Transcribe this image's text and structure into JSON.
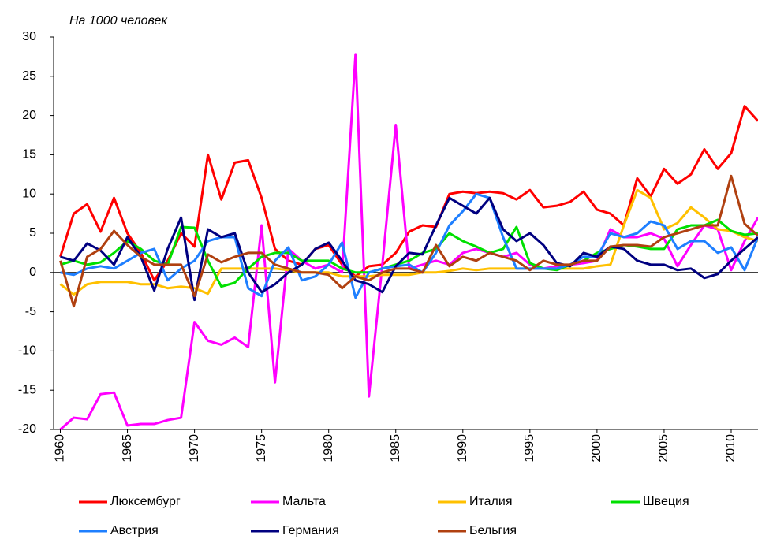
{
  "chart_data": {
    "type": "line",
    "title": "На 1000 человек",
    "x": [
      1960,
      1961,
      1962,
      1963,
      1964,
      1965,
      1966,
      1967,
      1968,
      1969,
      1970,
      1971,
      1972,
      1973,
      1974,
      1975,
      1976,
      1977,
      1978,
      1979,
      1980,
      1981,
      1982,
      1983,
      1984,
      1985,
      1986,
      1987,
      1988,
      1989,
      1990,
      1991,
      1992,
      1993,
      1994,
      1995,
      1996,
      1997,
      1998,
      1999,
      2000,
      2001,
      2002,
      2003,
      2004,
      2005,
      2006,
      2007,
      2008,
      2009,
      2010,
      2011,
      2012
    ],
    "xlim": [
      1959.5,
      2012
    ],
    "xticks": [
      1960,
      1965,
      1970,
      1975,
      1980,
      1985,
      1990,
      1995,
      2000,
      2005,
      2010
    ],
    "ylim": [
      -20,
      30
    ],
    "yticks": [
      -20,
      -15,
      -10,
      -5,
      0,
      5,
      10,
      15,
      20,
      25,
      30
    ],
    "series": [
      {
        "name": "Люксембург",
        "color": "#ff0000",
        "values": [
          2,
          7.5,
          8.7,
          5.2,
          9.5,
          5,
          2.5,
          -1,
          1.5,
          5,
          3.3,
          15,
          9.3,
          14,
          14.3,
          9.5,
          3,
          1.5,
          1,
          3,
          3.5,
          1,
          -0.5,
          0.8,
          1,
          2.5,
          5.2,
          6,
          5.8,
          10,
          10.3,
          10.1,
          10.3,
          10.1,
          9.3,
          10.5,
          8.3,
          8.5,
          9,
          10.3,
          8,
          7.5,
          6,
          12,
          9.7,
          13.2,
          11.3,
          12.5,
          15.7,
          13.2,
          15.2,
          21.2,
          19.3
        ]
      },
      {
        "name": "Мальта",
        "color": "#ff00ff",
        "values": [
          -20,
          -18.5,
          -18.7,
          -15.5,
          -15.3,
          -19.5,
          -19.3,
          -19.3,
          -18.8,
          -18.5,
          -6.3,
          -8.7,
          -9.2,
          -8.3,
          -9.5,
          6,
          -14,
          3,
          1.5,
          0.5,
          1,
          0,
          27.8,
          -15.8,
          1,
          18.8,
          0.5,
          1,
          1.5,
          1,
          2.5,
          3,
          2.5,
          2,
          2.5,
          1,
          0.5,
          0.8,
          1,
          1.2,
          1.5,
          5.5,
          4.5,
          4.5,
          5,
          4.3,
          0.8,
          3.5,
          6,
          5.5,
          0.3,
          4,
          7
        ]
      },
      {
        "name": "Италия",
        "color": "#ffc000",
        "values": [
          -1.5,
          -2.8,
          -1.5,
          -1.2,
          -1.2,
          -1.2,
          -1.5,
          -1.5,
          -2,
          -1.8,
          -2,
          -2.7,
          0.5,
          0.5,
          0.5,
          0.5,
          0.5,
          0.3,
          0,
          0,
          0,
          -0.5,
          -0.5,
          -0.5,
          -0.3,
          -0.3,
          -0.3,
          0,
          0,
          0.2,
          0.5,
          0.3,
          0.5,
          0.5,
          0.5,
          0.5,
          0.5,
          0.5,
          0.5,
          0.5,
          0.8,
          1,
          6,
          10.5,
          9.5,
          5.5,
          6.3,
          8.3,
          7,
          5.5,
          5.3,
          4.5,
          4
        ]
      },
      {
        "name": "Швеция",
        "color": "#00e000",
        "values": [
          1,
          1.5,
          1,
          1.3,
          2.5,
          4,
          3,
          1.5,
          1,
          5.8,
          5.7,
          1.5,
          -1.8,
          -1.3,
          0.5,
          2,
          2.5,
          2.5,
          1.5,
          1.5,
          1.5,
          0.5,
          0,
          0,
          0.5,
          1,
          1.5,
          2.5,
          3,
          5,
          4,
          3.3,
          2.5,
          3,
          5.8,
          1.2,
          0.5,
          0.3,
          1,
          1.5,
          2.5,
          3,
          3.5,
          3.3,
          3,
          3,
          5.5,
          6,
          6,
          6.7,
          5.3,
          4.8,
          5
        ]
      },
      {
        "name": "Австрия",
        "color": "#1e7fff",
        "values": [
          0,
          -0.3,
          0.5,
          0.8,
          0.5,
          1.5,
          2.5,
          3,
          -1,
          0.5,
          1.5,
          4,
          4.5,
          4.5,
          -2,
          -3,
          1.5,
          3.2,
          -1,
          -0.5,
          1,
          3.8,
          -3.2,
          0,
          0.5,
          0.8,
          1,
          0,
          2.5,
          6,
          7.8,
          10,
          9.5,
          4.5,
          0.5,
          0.5,
          0.5,
          0.5,
          1,
          2,
          2,
          5,
          4.5,
          5,
          6.5,
          6,
          3,
          4,
          4,
          2.5,
          3.2,
          0.3,
          4.5
        ]
      },
      {
        "name": "Германия",
        "color": "#000080",
        "values": [
          2,
          1.5,
          3.7,
          2.8,
          1,
          4.5,
          2,
          -2.3,
          3,
          7,
          -3.5,
          5.5,
          4.5,
          5,
          0,
          -2.5,
          -1.5,
          0,
          1,
          3,
          3.8,
          1.5,
          -1,
          -1.5,
          -2.5,
          0.8,
          2.5,
          2.3,
          6,
          9.5,
          8.5,
          7.5,
          9.5,
          5.5,
          4,
          5,
          3.5,
          1.2,
          0.8,
          2.5,
          2,
          3.3,
          3,
          1.5,
          1,
          1,
          0.3,
          0.5,
          -0.7,
          -0.2,
          1.5,
          3,
          4.5
        ]
      },
      {
        "name": "Бельгия",
        "color": "#b04010",
        "values": [
          1.5,
          -4.3,
          2,
          3,
          5.3,
          3.5,
          2,
          1,
          1,
          1,
          -3,
          2.3,
          1.3,
          2,
          2.5,
          2.5,
          1,
          0.5,
          0,
          0,
          -0.3,
          -2,
          -0.5,
          -1,
          0,
          0.5,
          0.5,
          0,
          3.5,
          0.8,
          2,
          1.5,
          2.5,
          2,
          1.5,
          0.3,
          1.5,
          1,
          1,
          1.5,
          1.5,
          3.3,
          3.5,
          3.5,
          3.3,
          4.5,
          5,
          5.5,
          6,
          6,
          12.3,
          6.2,
          4.7
        ]
      }
    ]
  }
}
